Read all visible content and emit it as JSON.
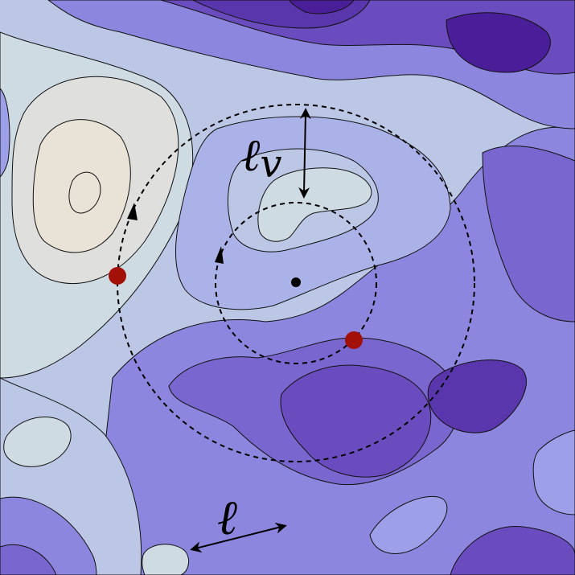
{
  "figure": {
    "labels": {
      "l_v_main": "ℓ",
      "l_v_sub": "v",
      "l": "ℓ"
    },
    "colors": {
      "level_0": "#e9e2d6",
      "level_1": "#dfe0de",
      "level_2": "#cfdbe3",
      "level_3": "#bcc7e6",
      "level_4": "#abb2e8",
      "level_5": "#9e9fe9",
      "level_6": "#8c86de",
      "level_7": "#7a66cf",
      "level_8": "#6a4cbf",
      "level_9": "#5a36ad",
      "level_10": "#4a1e98",
      "contour_line": "#111111",
      "marker_red": "#a31008",
      "marker_black": "#000000"
    },
    "markers": [
      {
        "name": "left-red-point",
        "color": "marker_red"
      },
      {
        "name": "lower-red-point",
        "color": "marker_red"
      },
      {
        "name": "center-point",
        "color": "marker_black"
      }
    ]
  }
}
